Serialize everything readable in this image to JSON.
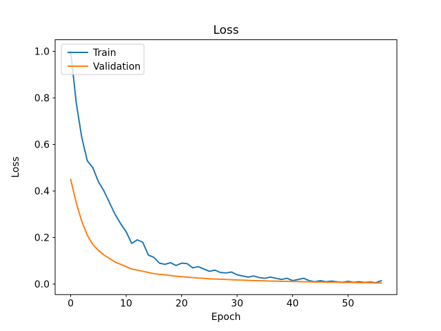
{
  "chart_data": {
    "type": "line",
    "title": "Loss",
    "xlabel": "Epoch",
    "ylabel": "Loss",
    "grid": false,
    "legend_position": "upper left",
    "xlim": [
      -2.8,
      58.8
    ],
    "ylim": [
      -0.045,
      1.05
    ],
    "xticks": [
      0,
      10,
      20,
      30,
      40,
      50
    ],
    "yticks": [
      0.0,
      0.2,
      0.4,
      0.6,
      0.8,
      1.0
    ],
    "x": [
      0,
      1,
      2,
      3,
      4,
      5,
      6,
      7,
      8,
      9,
      10,
      11,
      12,
      13,
      14,
      15,
      16,
      17,
      18,
      19,
      20,
      21,
      22,
      23,
      24,
      25,
      26,
      27,
      28,
      29,
      30,
      31,
      32,
      33,
      34,
      35,
      36,
      37,
      38,
      39,
      40,
      41,
      42,
      43,
      44,
      45,
      46,
      47,
      48,
      49,
      50,
      51,
      52,
      53,
      54,
      55,
      56
    ],
    "series": [
      {
        "name": "Train",
        "color": "#1f77b4",
        "values": [
          1.0,
          0.78,
          0.63,
          0.53,
          0.5,
          0.44,
          0.4,
          0.35,
          0.3,
          0.26,
          0.225,
          0.175,
          0.19,
          0.18,
          0.125,
          0.115,
          0.09,
          0.085,
          0.092,
          0.08,
          0.09,
          0.088,
          0.07,
          0.075,
          0.065,
          0.055,
          0.06,
          0.05,
          0.048,
          0.052,
          0.04,
          0.035,
          0.03,
          0.035,
          0.028,
          0.025,
          0.03,
          0.025,
          0.02,
          0.025,
          0.015,
          0.02,
          0.025,
          0.015,
          0.01,
          0.015,
          0.01,
          0.013,
          0.01,
          0.008,
          0.012,
          0.008,
          0.01,
          0.007,
          0.009,
          0.006,
          0.015
        ]
      },
      {
        "name": "Validation",
        "color": "#ff7f0e",
        "values": [
          0.45,
          0.35,
          0.27,
          0.21,
          0.17,
          0.145,
          0.125,
          0.11,
          0.095,
          0.085,
          0.075,
          0.065,
          0.06,
          0.055,
          0.05,
          0.045,
          0.042,
          0.04,
          0.037,
          0.034,
          0.032,
          0.03,
          0.028,
          0.026,
          0.025,
          0.023,
          0.022,
          0.021,
          0.02,
          0.019,
          0.018,
          0.017,
          0.016,
          0.015,
          0.015,
          0.014,
          0.013,
          0.013,
          0.012,
          0.012,
          0.011,
          0.011,
          0.01,
          0.01,
          0.009,
          0.009,
          0.008,
          0.008,
          0.008,
          0.007,
          0.007,
          0.007,
          0.006,
          0.006,
          0.006,
          0.005,
          0.005
        ]
      }
    ]
  },
  "colors": {
    "spine": "#000000",
    "legend_edge": "#cccccc",
    "background": "#ffffff"
  }
}
